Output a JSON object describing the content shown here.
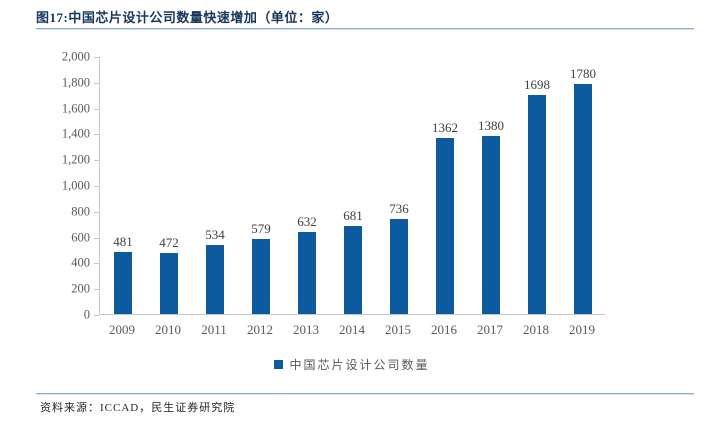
{
  "header": {
    "title": "图17:中国芯片设计公司数量快速增加（单位：家）"
  },
  "chart_data": {
    "type": "bar",
    "title": "图17:中国芯片设计公司数量快速增加（单位：家）",
    "categories": [
      "2009",
      "2010",
      "2011",
      "2012",
      "2013",
      "2014",
      "2015",
      "2016",
      "2017",
      "2018",
      "2019"
    ],
    "values": [
      481,
      472,
      534,
      579,
      632,
      681,
      736,
      1362,
      1380,
      1698,
      1780
    ],
    "series_name": "中国芯片设计公司数量",
    "xlabel": "",
    "ylabel": "",
    "ylim": [
      0,
      2000
    ],
    "ytick_step": 200,
    "grid": false,
    "legend_position": "bottom",
    "data_labels": true
  },
  "legend": {
    "series_label": "中国芯片设计公司数量",
    "swatch_color": "#0E5A9F"
  },
  "footer": {
    "source": "资料来源：ICCAD，民生证券研究院"
  },
  "colors": {
    "bar": "#0E5A9F",
    "title_text": "#17365D",
    "rule_blue": "#8CACD3",
    "axis_line": "#C6C6C6",
    "tick_text": "#595959",
    "value_label_text": "#404040",
    "footer_text": "#262626",
    "background": "#FFFFFF"
  }
}
